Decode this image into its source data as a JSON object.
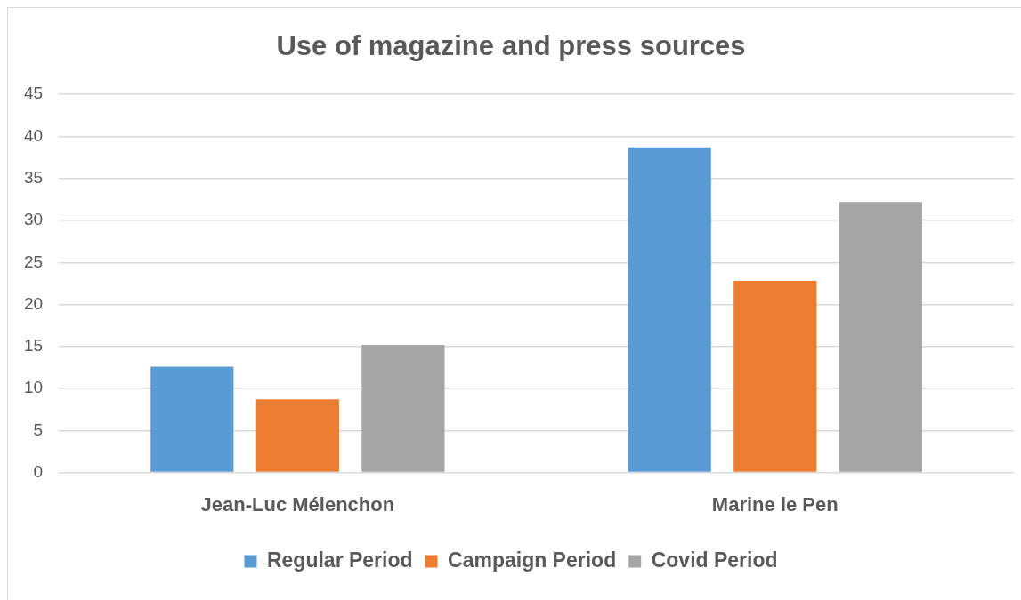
{
  "chart_data": {
    "type": "bar",
    "title": "Use of magazine and press sources",
    "categories": [
      "Jean-Luc Mélenchon",
      "Marine le Pen"
    ],
    "series": [
      {
        "name": "Regular Period",
        "color": "#5b9bd5",
        "values": [
          12.6,
          38.7
        ]
      },
      {
        "name": "Campaign Period",
        "color": "#ed7d31",
        "values": [
          8.7,
          22.8
        ]
      },
      {
        "name": "Covid Period",
        "color": "#a5a5a5",
        "values": [
          15.2,
          32.2
        ]
      }
    ],
    "ylim": [
      0,
      45
    ],
    "yticks": [
      0,
      5,
      10,
      15,
      20,
      25,
      30,
      35,
      40,
      45
    ],
    "grid": "y",
    "legend": "bottom"
  }
}
